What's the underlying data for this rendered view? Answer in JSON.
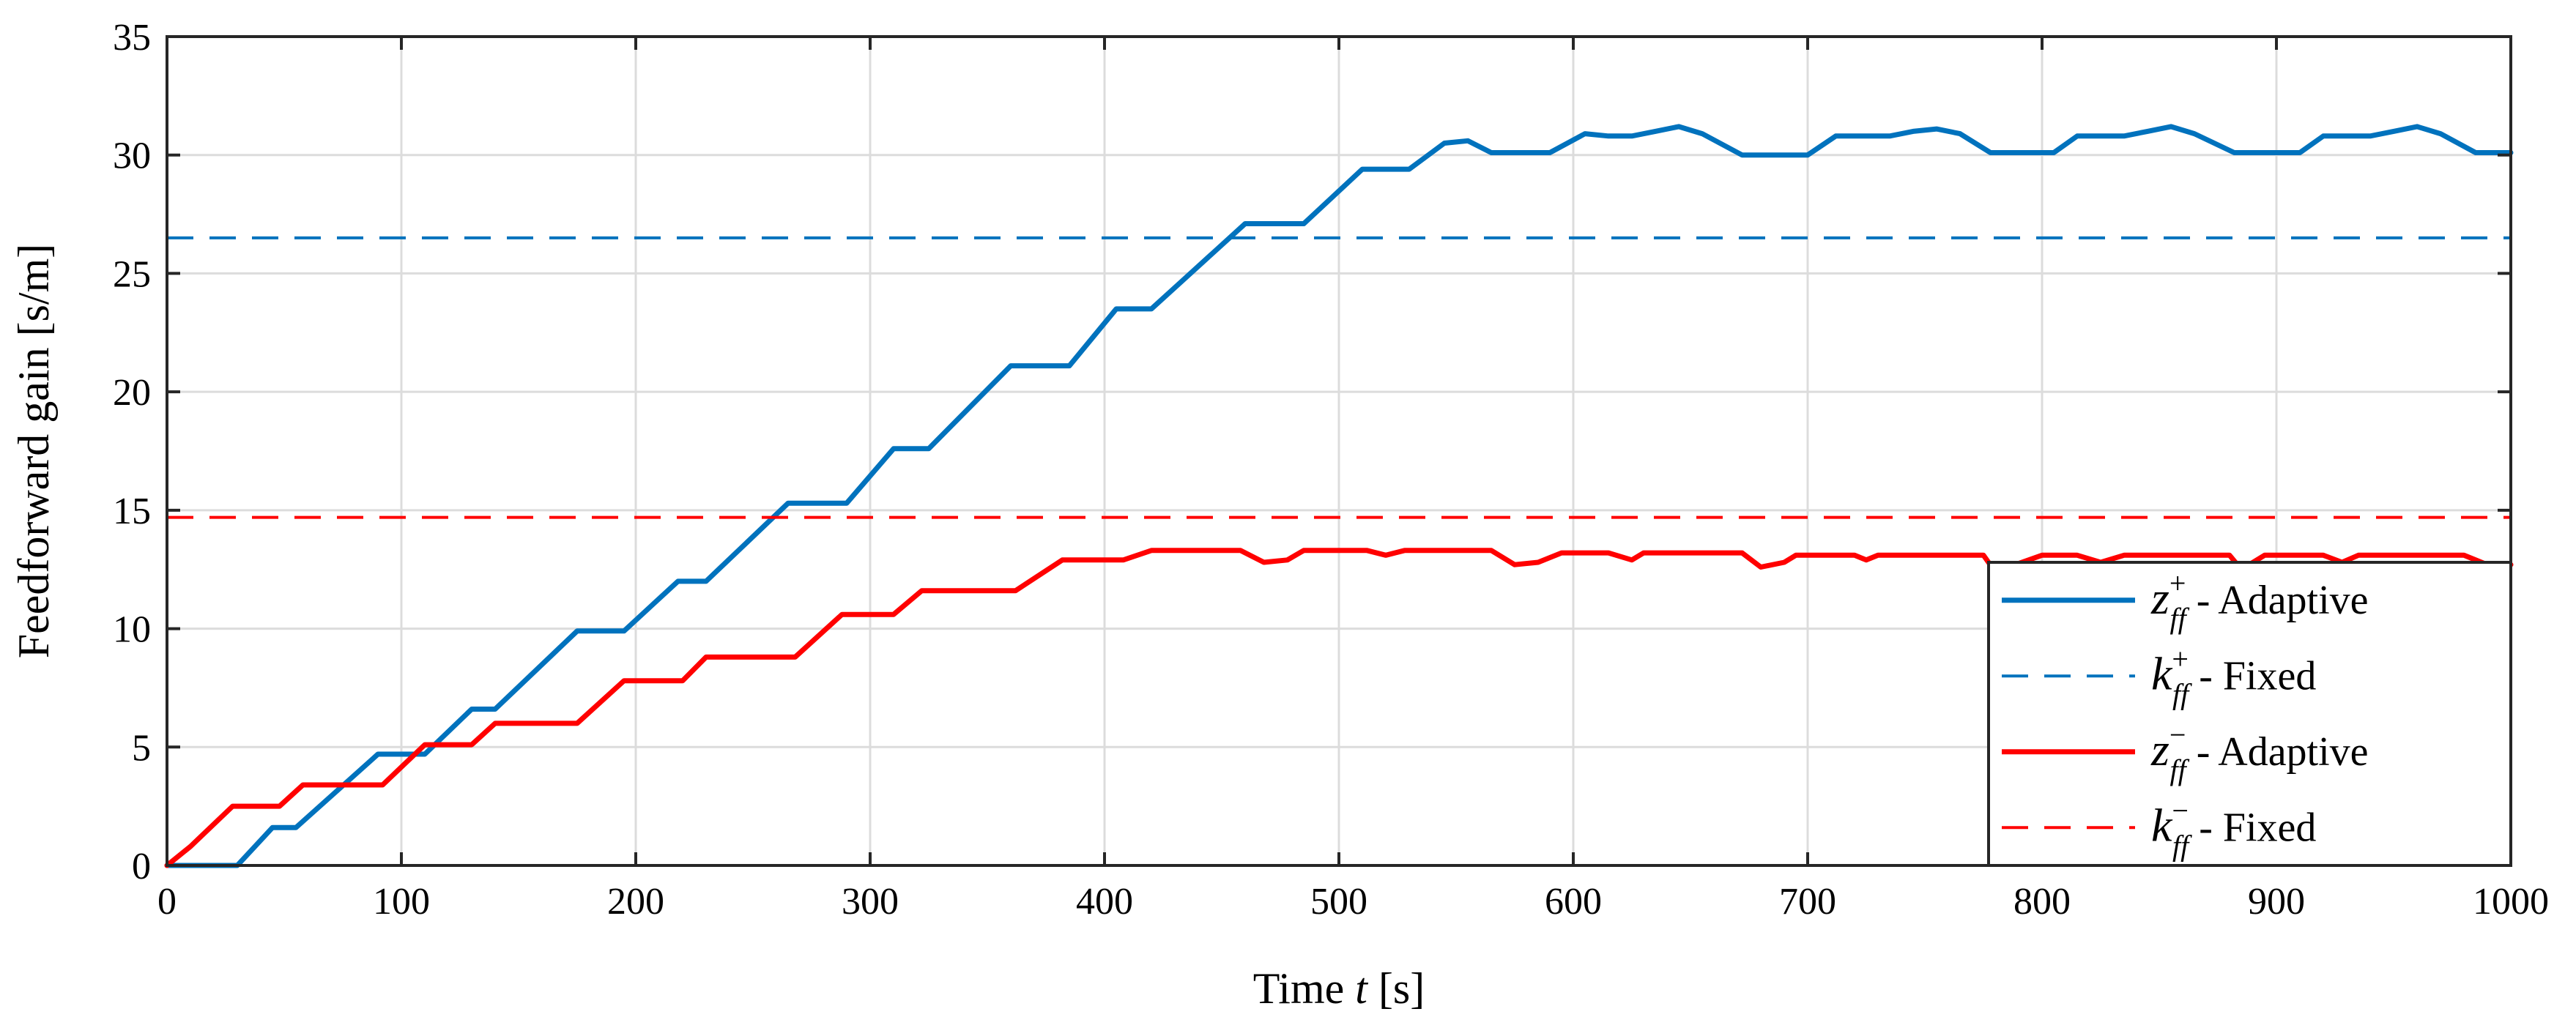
{
  "chart_data": {
    "type": "line",
    "title": "",
    "xlabel_prefix": "Time ",
    "xlabel_var": "t",
    "xlabel_suffix": " [s]",
    "ylabel": "Feedforward gain [s/m]",
    "xlim": [
      0,
      1000
    ],
    "ylim": [
      0,
      35
    ],
    "xticks": [
      0,
      100,
      200,
      300,
      400,
      500,
      600,
      700,
      800,
      900,
      1000
    ],
    "yticks": [
      0,
      5,
      10,
      15,
      20,
      25,
      30,
      35
    ],
    "grid": true,
    "legend_position": "bottom-right",
    "series": [
      {
        "name": "z_ff^+ - Adaptive",
        "legend_var": "z",
        "legend_sup": "+",
        "legend_sub": "ff",
        "legend_tail": " - Adaptive",
        "color": "#0072BD",
        "style": "solid",
        "x": [
          0,
          30,
          45,
          55,
          90,
          110,
          130,
          140,
          175,
          195,
          218,
          230,
          265,
          290,
          310,
          325,
          360,
          385,
          405,
          420,
          460,
          485,
          510,
          530,
          545,
          555,
          565,
          590,
          605,
          615,
          625,
          635,
          645,
          655,
          672,
          700,
          712,
          722,
          735,
          745,
          755,
          765,
          778,
          805,
          815,
          825,
          835,
          845,
          855,
          865,
          882,
          910,
          920,
          930,
          940,
          950,
          960,
          970,
          985,
          1000
        ],
        "y": [
          0,
          0,
          1.6,
          1.6,
          4.7,
          4.7,
          6.6,
          6.6,
          9.9,
          9.9,
          12.0,
          12.0,
          15.3,
          15.3,
          17.6,
          17.6,
          21.1,
          21.1,
          23.5,
          23.5,
          27.1,
          27.1,
          29.4,
          29.4,
          30.5,
          30.6,
          30.1,
          30.1,
          30.9,
          30.8,
          30.8,
          31.0,
          31.2,
          30.9,
          30.0,
          30.0,
          30.8,
          30.8,
          30.8,
          31.0,
          31.1,
          30.9,
          30.1,
          30.1,
          30.8,
          30.8,
          30.8,
          31.0,
          31.2,
          30.9,
          30.1,
          30.1,
          30.8,
          30.8,
          30.8,
          31.0,
          31.2,
          30.9,
          30.1,
          30.1
        ]
      },
      {
        "name": "k_ff^+ - Fixed",
        "legend_var": "k",
        "legend_sup": "+",
        "legend_sub": "ff",
        "legend_tail": " - Fixed",
        "color": "#0072BD",
        "style": "dashed",
        "x": [
          0,
          1000
        ],
        "y": [
          26.5,
          26.5
        ]
      },
      {
        "name": "z_ff^- - Adaptive",
        "legend_var": "z",
        "legend_sup": "−",
        "legend_sub": "ff",
        "legend_tail": " - Adaptive",
        "color": "#FF0000",
        "style": "solid",
        "x": [
          0,
          10,
          28,
          48,
          58,
          92,
          110,
          130,
          140,
          175,
          195,
          220,
          230,
          268,
          288,
          310,
          322,
          362,
          382,
          408,
          420,
          458,
          468,
          478,
          485,
          512,
          520,
          528,
          565,
          575,
          585,
          595,
          615,
          625,
          630,
          672,
          680,
          690,
          695,
          720,
          725,
          730,
          775,
          780,
          800,
          815,
          825,
          835,
          880,
          885,
          895,
          920,
          928,
          935,
          980,
          990,
          1000
        ],
        "y": [
          0,
          0.8,
          2.5,
          2.5,
          3.4,
          3.4,
          5.1,
          5.1,
          6.0,
          6.0,
          7.8,
          7.8,
          8.8,
          8.8,
          10.6,
          10.6,
          11.6,
          11.6,
          12.9,
          12.9,
          13.3,
          13.3,
          12.8,
          12.9,
          13.3,
          13.3,
          13.1,
          13.3,
          13.3,
          12.7,
          12.8,
          13.2,
          13.2,
          12.9,
          13.2,
          13.2,
          12.6,
          12.8,
          13.1,
          13.1,
          12.9,
          13.1,
          13.1,
          12.4,
          13.1,
          13.1,
          12.8,
          13.1,
          13.1,
          12.5,
          13.1,
          13.1,
          12.8,
          13.1,
          13.1,
          12.7,
          12.7
        ]
      },
      {
        "name": "k_ff^- - Fixed",
        "legend_var": "k",
        "legend_sup": "−",
        "legend_sub": "ff",
        "legend_tail": " - Fixed",
        "color": "#FF0000",
        "style": "dashed",
        "x": [
          0,
          1000
        ],
        "y": [
          14.7,
          14.7
        ]
      }
    ]
  }
}
